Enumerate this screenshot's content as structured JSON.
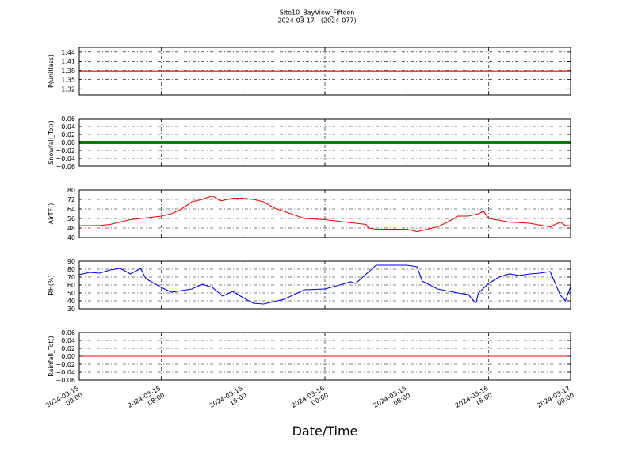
{
  "title": "Site10_BayView_Fifteen",
  "subtitle": "2024-03-17 - (2024-077)",
  "xlabel": "Date/Time",
  "x_ticks": [
    [
      "2024-03-15",
      "00:00"
    ],
    [
      "2024-03-15",
      "08:00"
    ],
    [
      "2024-03-15",
      "16:00"
    ],
    [
      "2024-03-16",
      "00:00"
    ],
    [
      "2024-03-16",
      "08:00"
    ],
    [
      "2024-03-16",
      "16:00"
    ],
    [
      "2024-03-17",
      "00:00"
    ]
  ],
  "chart_data": [
    {
      "type": "line",
      "ylabel": "P(unitless)",
      "ylim": [
        1.3,
        1.455
      ],
      "yticks": [
        "1.44",
        "1.41",
        "1.38",
        "1.35",
        "1.32"
      ],
      "ytick_values": [
        1.44,
        1.41,
        1.38,
        1.35,
        1.32
      ],
      "grid": true,
      "color": "#ff0000",
      "x": [
        "2024-03-15 00:00",
        "2024-03-17 00:00"
      ],
      "series": [
        {
          "values": [
            1.377,
            1.377
          ]
        }
      ]
    },
    {
      "type": "line",
      "ylabel": "Snowfall_Tot()",
      "ylim": [
        -0.06,
        0.06
      ],
      "yticks": [
        "0.06",
        "0.04",
        "0.02",
        "0.00",
        "−0.02",
        "−0.04",
        "−0.06"
      ],
      "ytick_values": [
        0.06,
        0.04,
        0.02,
        0.0,
        -0.02,
        -0.04,
        -0.06
      ],
      "grid": true,
      "color": "#008000",
      "marker": "dot",
      "x": [
        "2024-03-15 00:00",
        "2024-03-17 00:00"
      ],
      "series": [
        {
          "values": [
            0.0,
            0.0
          ]
        }
      ]
    },
    {
      "type": "line",
      "ylabel": "AirTF()",
      "ylim": [
        40,
        80
      ],
      "yticks": [
        "80",
        "72",
        "64",
        "56",
        "48",
        "40"
      ],
      "ytick_values": [
        80,
        72,
        64,
        56,
        48,
        40
      ],
      "grid": true,
      "color": "#ff0000",
      "x": [
        "2024-03-15 00:00",
        "2024-03-15 02:00",
        "2024-03-15 03:00",
        "2024-03-15 04:00",
        "2024-03-15 05:00",
        "2024-03-15 06:00",
        "2024-03-15 07:00",
        "2024-03-15 08:00",
        "2024-03-15 09:00",
        "2024-03-15 10:00",
        "2024-03-15 11:00",
        "2024-03-15 12:00",
        "2024-03-15 13:00",
        "2024-03-15 13:45",
        "2024-03-15 14:00",
        "2024-03-15 15:00",
        "2024-03-15 16:00",
        "2024-03-15 17:00",
        "2024-03-15 18:00",
        "2024-03-15 19:00",
        "2024-03-15 20:00",
        "2024-03-15 21:00",
        "2024-03-15 22:00",
        "2024-03-16 00:00",
        "2024-03-16 02:00",
        "2024-03-16 04:00",
        "2024-03-16 04:15",
        "2024-03-16 05:00",
        "2024-03-16 08:00",
        "2024-03-16 09:00",
        "2024-03-16 10:00",
        "2024-03-16 11:00",
        "2024-03-16 12:00",
        "2024-03-16 13:00",
        "2024-03-16 14:00",
        "2024-03-16 15:00",
        "2024-03-16 15:30",
        "2024-03-16 16:00",
        "2024-03-16 18:00",
        "2024-03-16 20:00",
        "2024-03-16 22:00",
        "2024-03-16 23:00",
        "2024-03-16 23:30",
        "2024-03-17 00:00"
      ],
      "series": [
        {
          "values": [
            50,
            50,
            51,
            53,
            55,
            56,
            57,
            58,
            60,
            64,
            70,
            72,
            75,
            71,
            71,
            73,
            73,
            72,
            70,
            65,
            62,
            59,
            56,
            55,
            53,
            51,
            48,
            47,
            47,
            45,
            47,
            49,
            53,
            58,
            58,
            60,
            62,
            56,
            53,
            52,
            49,
            53,
            50,
            50
          ]
        }
      ]
    },
    {
      "type": "line",
      "ylabel": "RH(%)",
      "ylim": [
        30,
        90
      ],
      "yticks": [
        "90",
        "80",
        "70",
        "60",
        "50",
        "40",
        "30"
      ],
      "ytick_values": [
        90,
        80,
        70,
        60,
        50,
        40,
        30
      ],
      "grid": true,
      "color": "#0000ff",
      "x": [
        "2024-03-15 00:00",
        "2024-03-15 01:00",
        "2024-03-15 02:00",
        "2024-03-15 03:00",
        "2024-03-15 04:00",
        "2024-03-15 05:00",
        "2024-03-15 06:00",
        "2024-03-15 06:30",
        "2024-03-15 08:00",
        "2024-03-15 09:00",
        "2024-03-15 11:00",
        "2024-03-15 12:00",
        "2024-03-15 13:00",
        "2024-03-15 14:00",
        "2024-03-15 15:00",
        "2024-03-15 16:00",
        "2024-03-15 17:00",
        "2024-03-15 18:00",
        "2024-03-15 20:00",
        "2024-03-15 22:00",
        "2024-03-16 00:00",
        "2024-03-16 02:00",
        "2024-03-16 02:30",
        "2024-03-16 03:00",
        "2024-03-16 05:00",
        "2024-03-16 06:00",
        "2024-03-16 07:00",
        "2024-03-16 08:00",
        "2024-03-16 09:00",
        "2024-03-16 09:30",
        "2024-03-16 11:00",
        "2024-03-16 13:00",
        "2024-03-16 14:00",
        "2024-03-16 14:45",
        "2024-03-16 15:00",
        "2024-03-16 16:00",
        "2024-03-16 17:00",
        "2024-03-16 18:00",
        "2024-03-16 19:00",
        "2024-03-16 20:00",
        "2024-03-16 21:00",
        "2024-03-16 22:00",
        "2024-03-16 23:00",
        "2024-03-16 23:30",
        "2024-03-17 00:00"
      ],
      "series": [
        {
          "values": [
            73,
            76,
            75,
            79,
            81,
            74,
            81,
            68,
            57,
            51,
            55,
            61,
            57,
            46,
            52,
            44,
            37,
            36,
            42,
            54,
            55,
            62,
            64,
            62,
            85,
            85,
            85,
            85,
            83,
            65,
            55,
            50,
            48,
            37,
            50,
            62,
            70,
            74,
            72,
            74,
            75,
            77,
            47,
            40,
            58
          ]
        }
      ]
    },
    {
      "type": "line",
      "ylabel": "Rainfall_Tot()",
      "ylim": [
        -0.06,
        0.06
      ],
      "yticks": [
        "0.06",
        "0.04",
        "0.02",
        "0.00",
        "−0.02",
        "−0.04",
        "−0.06"
      ],
      "ytick_values": [
        0.06,
        0.04,
        0.02,
        0.0,
        -0.02,
        -0.04,
        -0.06
      ],
      "grid": true,
      "color": "#ff0000",
      "x": [
        "2024-03-15 00:00",
        "2024-03-17 00:00"
      ],
      "series": [
        {
          "values": [
            0.0,
            0.0
          ]
        }
      ]
    }
  ]
}
